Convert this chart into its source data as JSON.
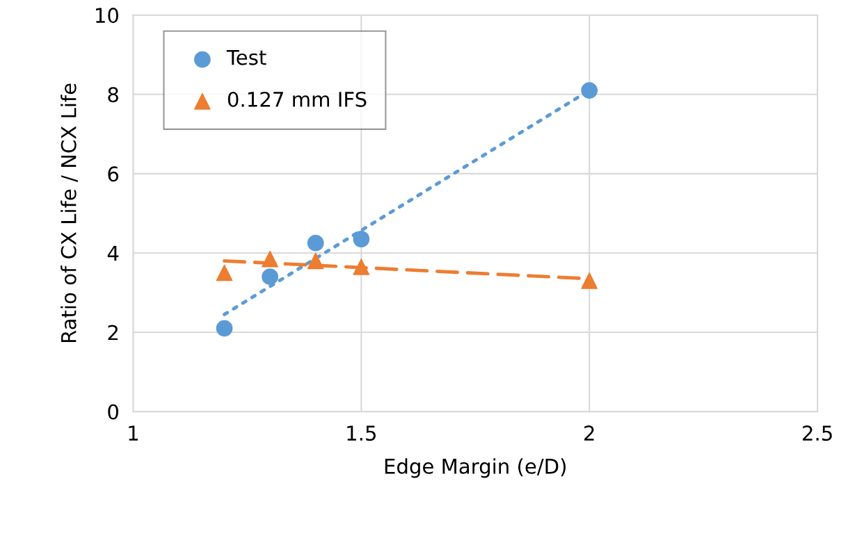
{
  "chart_data": {
    "type": "scatter",
    "xlabel": "Edge Margin (e/D)",
    "ylabel": "Ratio of CX Life / NCX Life",
    "xlim": [
      1,
      2.5
    ],
    "xticks": [
      1,
      1.5,
      2,
      2.5
    ],
    "ylim": [
      0,
      10
    ],
    "yticks": [
      0,
      2,
      4,
      6,
      8,
      10
    ],
    "grid": true,
    "legend": "top left",
    "series": [
      {
        "name": "Test",
        "marker": "circle",
        "color": "#5b9bd5",
        "x": [
          1.2,
          1.3,
          1.4,
          1.5,
          2.0
        ],
        "values": [
          2.1,
          3.4,
          4.25,
          4.35,
          8.1
        ]
      },
      {
        "name": "0.127 mm IFS",
        "marker": "triangle",
        "color": "#ed7d31",
        "x": [
          1.2,
          1.3,
          1.4,
          1.5,
          2.0
        ],
        "values": [
          3.5,
          3.85,
          3.8,
          3.65,
          3.3
        ]
      },
      {
        "type": "line",
        "line_style": "dotted",
        "marker": "none",
        "color": "#5b9bd5",
        "x": [
          1.2,
          2.0
        ],
        "values": [
          2.45,
          8.1
        ]
      },
      {
        "type": "line",
        "line_style": "dashed",
        "marker": "none",
        "color": "#ed7d31",
        "x": [
          1.2,
          2.0
        ],
        "values": [
          3.8,
          3.35
        ]
      }
    ]
  }
}
